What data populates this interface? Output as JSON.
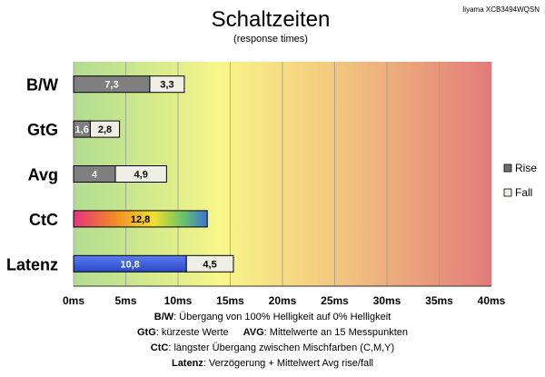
{
  "chart_data": {
    "type": "bar",
    "orientation": "horizontal",
    "stacked": true,
    "title": "Schaltzeiten",
    "subtitle": "(response times)",
    "corner_label": "Iiyama XCB3494WQSN",
    "categories": [
      "B/W",
      "GtG",
      "Avg",
      "CtC",
      "Latenz"
    ],
    "series": [
      {
        "name": "Rise",
        "color": "#7f7f7f",
        "values": [
          7.3,
          1.6,
          4,
          null,
          10.8
        ],
        "labels": [
          "7,3",
          "1,6",
          "4",
          "",
          "10,8"
        ]
      },
      {
        "name": "Fall",
        "color": "#f0efe6",
        "values": [
          3.3,
          2.8,
          4.9,
          null,
          4.5
        ],
        "labels": [
          "3,3",
          "2,8",
          "4,9",
          "",
          "4,5"
        ]
      },
      {
        "name": "CtC",
        "color": "gradient",
        "values": [
          null,
          null,
          null,
          12.8,
          null
        ],
        "labels": [
          "",
          "",
          "",
          "12,8",
          ""
        ]
      }
    ],
    "latenz_color": "#3a5be0",
    "xlim": [
      0,
      40
    ],
    "xticks": [
      0,
      5,
      10,
      15,
      20,
      25,
      30,
      35,
      40
    ],
    "xtick_labels": [
      "0ms",
      "5ms",
      "10ms",
      "15ms",
      "20ms",
      "25ms",
      "30ms",
      "35ms",
      "40ms"
    ],
    "grid": true,
    "legend": {
      "position": "right",
      "entries": [
        "Rise",
        "Fall"
      ]
    },
    "background_gradient": [
      "#b6de94",
      "#f7f58a",
      "#e37d7d"
    ]
  },
  "footnotes": [
    {
      "key": "B/W",
      "text": ":  Übergang von 100% Helligkeit auf 0% Helligkeit"
    },
    {
      "key": "GtG",
      "text": ": kürzeste  Werte",
      "key2": "AVG",
      "text2": ": Mittelwerte  an 15 Messpunkten"
    },
    {
      "key": "CtC",
      "text": ": längster Übergang  zwischen Mischfarben  (C,M,Y)"
    },
    {
      "key": "Latenz",
      "text": ": Verzögerung  + Mittelwert Avg rise/fall"
    }
  ]
}
